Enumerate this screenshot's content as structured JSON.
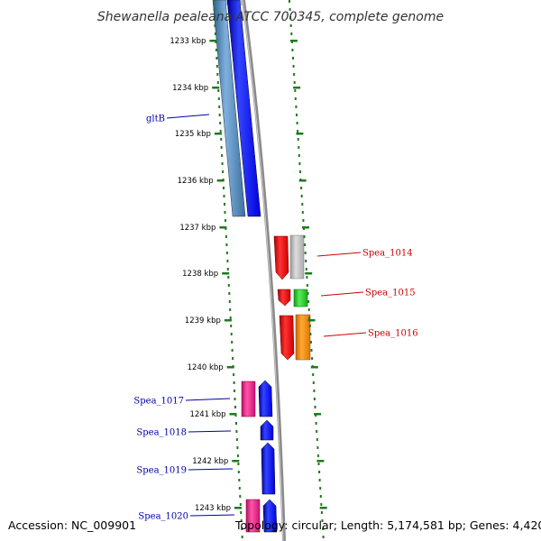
{
  "title": "Shewanella pealeana ATCC 700345, complete genome",
  "footer": {
    "accession": "Accession: NC_009901",
    "topology": "Topology: circular; Length: 5,174,581 bp; Genes: 4,420"
  },
  "ticks": [
    "1233 kbp",
    "1234 kbp",
    "1235 kbp",
    "1236 kbp",
    "1237 kbp",
    "1238 kbp",
    "1239 kbp",
    "1240 kbp",
    "1241 kbp",
    "1242 kbp",
    "1243 kbp"
  ],
  "gene_labels": [
    {
      "text": "gltB",
      "side": "left"
    },
    {
      "text": "Spea_1014",
      "side": "right"
    },
    {
      "text": "Spea_1015",
      "side": "right"
    },
    {
      "text": "Spea_1016",
      "side": "right"
    },
    {
      "text": "Spea_1017",
      "side": "left"
    },
    {
      "text": "Spea_1018",
      "side": "left"
    },
    {
      "text": "Spea_1019",
      "side": "left"
    },
    {
      "text": "Spea_1020",
      "side": "left"
    }
  ],
  "colors": {
    "backbone": "#8a8a8a",
    "tick": "#1f7a1f",
    "label_left": "#0000aa",
    "label_right": "#cc0000",
    "cds_forward": "#0000ff",
    "cds_reverse": "#ff0000",
    "gltB_feature": "#4f86b8",
    "gray_feature": "#bbbbbb",
    "green_feature": "#33cc33",
    "orange_feature": "#ff8800",
    "pink_feature": "#ee2288"
  }
}
